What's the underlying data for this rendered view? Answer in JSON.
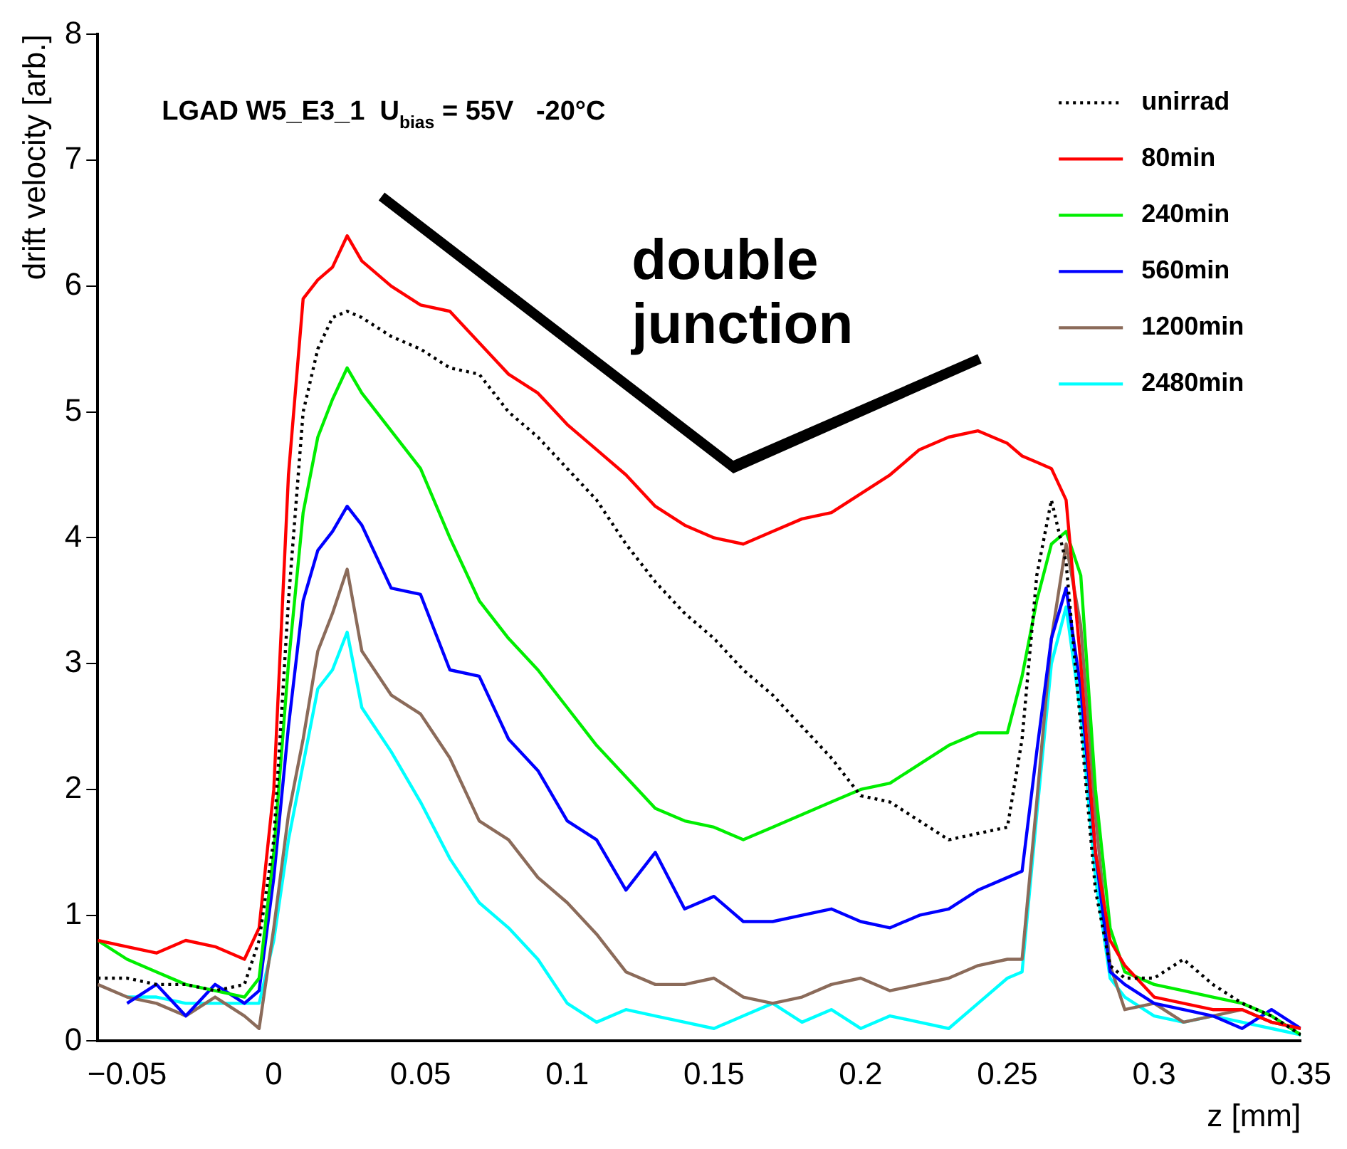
{
  "chart_data": {
    "type": "line",
    "xlabel": "z [mm]",
    "ylabel": "drift velocity [arb.]",
    "annotations": [
      "LGAD W5_E3_1  U$_{bias}$ = 55V   -20°C",
      "double junction"
    ],
    "x": [
      -0.06,
      -0.05,
      -0.04,
      -0.03,
      -0.02,
      -0.01,
      -0.005,
      0,
      0.005,
      0.01,
      0.015,
      0.02,
      0.025,
      0.03,
      0.04,
      0.05,
      0.06,
      0.07,
      0.08,
      0.09,
      0.1,
      0.11,
      0.12,
      0.13,
      0.14,
      0.15,
      0.16,
      0.17,
      0.18,
      0.19,
      0.2,
      0.21,
      0.22,
      0.23,
      0.24,
      0.25,
      0.255,
      0.26,
      0.265,
      0.27,
      0.275,
      0.28,
      0.285,
      0.29,
      0.3,
      0.31,
      0.32,
      0.33,
      0.34,
      0.35
    ],
    "series": [
      {
        "name": "unirrad",
        "color": "#000000",
        "line_style": "dotted",
        "values": [
          0.5,
          0.5,
          0.45,
          0.45,
          0.4,
          0.45,
          0.8,
          1.6,
          3.5,
          5.0,
          5.5,
          5.75,
          5.8,
          5.75,
          5.6,
          5.5,
          5.35,
          5.3,
          5.0,
          4.8,
          4.55,
          4.3,
          3.95,
          3.65,
          3.4,
          3.2,
          2.95,
          2.75,
          2.5,
          2.25,
          1.95,
          1.9,
          1.75,
          1.6,
          1.65,
          1.7,
          2.4,
          3.7,
          4.3,
          3.8,
          2.5,
          1.2,
          0.6,
          0.5,
          0.5,
          0.65,
          0.45,
          0.3,
          0.2,
          0.05
        ]
      },
      {
        "name": "80min",
        "color": "#ff0000",
        "line_style": "solid",
        "values": [
          0.8,
          0.75,
          0.7,
          0.8,
          0.75,
          0.65,
          0.9,
          2.0,
          4.5,
          5.9,
          6.05,
          6.15,
          6.4,
          6.2,
          6.0,
          5.85,
          5.8,
          5.55,
          5.3,
          5.15,
          4.9,
          4.7,
          4.5,
          4.25,
          4.1,
          4.0,
          3.95,
          4.05,
          4.15,
          4.2,
          4.35,
          4.5,
          4.7,
          4.8,
          4.85,
          4.75,
          4.65,
          4.6,
          4.55,
          4.3,
          3.0,
          1.5,
          0.8,
          0.6,
          0.35,
          0.3,
          0.25,
          0.25,
          0.15,
          0.1
        ]
      },
      {
        "name": "240min",
        "color": "#00ee00",
        "line_style": "solid",
        "values": [
          0.8,
          0.65,
          0.55,
          0.45,
          0.4,
          0.35,
          0.5,
          1.5,
          3.0,
          4.2,
          4.8,
          5.1,
          5.35,
          5.15,
          4.85,
          4.55,
          4.0,
          3.5,
          3.2,
          2.95,
          2.65,
          2.35,
          2.1,
          1.85,
          1.75,
          1.7,
          1.6,
          1.7,
          1.8,
          1.9,
          2.0,
          2.05,
          2.2,
          2.35,
          2.45,
          2.45,
          2.9,
          3.5,
          3.95,
          4.05,
          3.7,
          2.0,
          0.9,
          0.55,
          0.45,
          0.4,
          0.35,
          0.3,
          0.2,
          0.05
        ]
      },
      {
        "name": "560min",
        "color": "#0000ff",
        "line_style": "solid",
        "values": [
          null,
          0.3,
          0.45,
          0.2,
          0.45,
          0.3,
          0.4,
          1.3,
          2.5,
          3.5,
          3.9,
          4.05,
          4.25,
          4.1,
          3.6,
          3.55,
          2.95,
          2.9,
          2.4,
          2.15,
          1.75,
          1.6,
          1.2,
          1.5,
          1.05,
          1.15,
          0.95,
          0.95,
          1.0,
          1.05,
          0.95,
          0.9,
          1.0,
          1.05,
          1.2,
          1.3,
          1.35,
          2.3,
          3.2,
          3.6,
          2.8,
          1.5,
          0.55,
          0.45,
          0.3,
          0.25,
          0.2,
          0.1,
          0.25,
          0.1
        ]
      },
      {
        "name": "1200min",
        "color": "#8b6b5a",
        "line_style": "solid",
        "values": [
          0.45,
          0.35,
          0.3,
          0.2,
          0.35,
          0.2,
          0.1,
          0.9,
          1.8,
          2.4,
          3.1,
          3.4,
          3.75,
          3.1,
          2.75,
          2.6,
          2.25,
          1.75,
          1.6,
          1.3,
          1.1,
          0.85,
          0.55,
          0.45,
          0.45,
          0.5,
          0.35,
          0.3,
          0.35,
          0.45,
          0.5,
          0.4,
          0.45,
          0.5,
          0.6,
          0.65,
          0.65,
          1.9,
          3.2,
          3.95,
          3.3,
          1.8,
          0.6,
          0.25,
          0.3,
          0.15,
          0.2,
          0.25,
          0.15,
          0.1
        ]
      },
      {
        "name": "2480min",
        "color": "#00ffff",
        "line_style": "solid",
        "values": [
          null,
          0.35,
          0.35,
          0.3,
          0.3,
          0.3,
          0.3,
          0.8,
          1.6,
          2.2,
          2.8,
          2.95,
          3.25,
          2.65,
          2.3,
          1.9,
          1.45,
          1.1,
          0.9,
          0.65,
          0.3,
          0.15,
          0.25,
          0.2,
          0.15,
          0.1,
          0.2,
          0.3,
          0.15,
          0.25,
          0.1,
          0.2,
          0.15,
          0.1,
          0.3,
          0.5,
          0.55,
          1.8,
          3.0,
          3.45,
          2.6,
          1.3,
          0.5,
          0.35,
          0.2,
          0.15,
          0.2,
          0.15,
          0.1,
          0.05
        ]
      }
    ],
    "xlim": [
      -0.06,
      0.35
    ],
    "xticks": [
      {
        "value": -0.05,
        "label": "−0.05"
      },
      0,
      0.05,
      0.1,
      0.15,
      0.2,
      0.25,
      0.3,
      0.35
    ],
    "ylim": [
      0,
      8
    ],
    "yticks": [
      0,
      1,
      2,
      3,
      4,
      5,
      6,
      7,
      8
    ],
    "grid": false,
    "legend": "top right",
    "marker": "none"
  }
}
